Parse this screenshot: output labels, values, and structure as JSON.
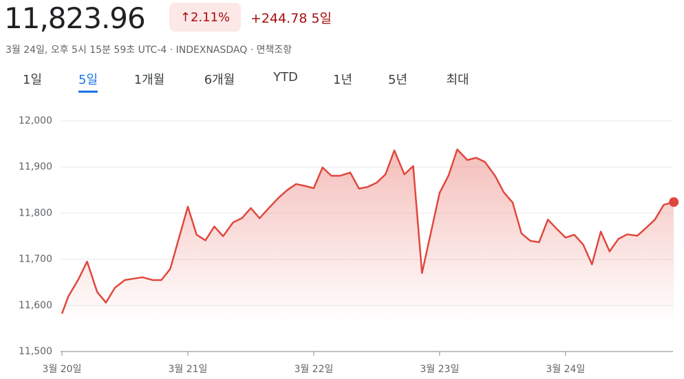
{
  "header": {
    "price": "11,823.96",
    "change_percent": "2.11%",
    "change": "+244.78",
    "period": "5일",
    "subtitle": "3월 24일, 오후 5시 15분 59초 UTC-4 · INDEXNASDAQ · 면책조항"
  },
  "tabs": {
    "items": [
      "1일",
      "5일",
      "1개월",
      "6개월",
      "YTD",
      "1년",
      "5년",
      "최대"
    ],
    "selected": 1
  },
  "chart_data": {
    "type": "line",
    "color": "#e0473c",
    "grid": true,
    "x": [
      0,
      0.05,
      0.13,
      0.2,
      0.28,
      0.35,
      0.42,
      0.5,
      0.57,
      0.64,
      0.72,
      0.79,
      0.86,
      1.0,
      1.07,
      1.14,
      1.21,
      1.28,
      1.36,
      1.43,
      1.5,
      1.57,
      1.64,
      1.72,
      1.79,
      1.86,
      1.93,
      2.0,
      2.07,
      2.14,
      2.21,
      2.29,
      2.36,
      2.43,
      2.5,
      2.57,
      2.64,
      2.72,
      2.79,
      2.86,
      3.0,
      3.07,
      3.14,
      3.22,
      3.29,
      3.36,
      3.44,
      3.51,
      3.58,
      3.65,
      3.72,
      3.79,
      3.86,
      3.93,
      4.0,
      4.07,
      4.14,
      4.21,
      4.28,
      4.35,
      4.42,
      4.49,
      4.57,
      4.64,
      4.71,
      4.78,
      4.86
    ],
    "series": [
      {
        "values": [
          11582,
          11619,
          11656,
          11695,
          11629,
          11606,
          11638,
          11655,
          11658,
          11661,
          11655,
          11655,
          11679,
          11814,
          11753,
          11741,
          11771,
          11750,
          11780,
          11789,
          11811,
          11789,
          11810,
          11833,
          11850,
          11863,
          11859,
          11854,
          11899,
          11881,
          11881,
          11888,
          11853,
          11857,
          11866,
          11884,
          11936,
          11884,
          11902,
          11670,
          11844,
          11881,
          11938,
          11915,
          11920,
          11911,
          11881,
          11845,
          11823,
          11756,
          11740,
          11737,
          11786,
          11766,
          11747,
          11753,
          11732,
          11689,
          11760,
          11717,
          11744,
          11754,
          11751,
          11768,
          11786,
          11818,
          11824
        ]
      }
    ],
    "xlim": [
      0,
      4.87
    ],
    "xticks": [
      {
        "value": 0,
        "label": "3월 20일"
      },
      {
        "value": 1,
        "label": "3월 21일"
      },
      {
        "value": 2,
        "label": "3월 22일"
      },
      {
        "value": 3,
        "label": "3월 23일"
      },
      {
        "value": 4,
        "label": "3월 24일"
      }
    ],
    "ylim": [
      11500,
      12000
    ],
    "yticks": [
      {
        "value": 11500,
        "label": "11,500"
      },
      {
        "value": 11600,
        "label": "11,600"
      },
      {
        "value": 11700,
        "label": "11,700"
      },
      {
        "value": 11800,
        "label": "11,800"
      },
      {
        "value": 11900,
        "label": "11,900"
      },
      {
        "value": 12000,
        "label": "12,000"
      }
    ]
  }
}
